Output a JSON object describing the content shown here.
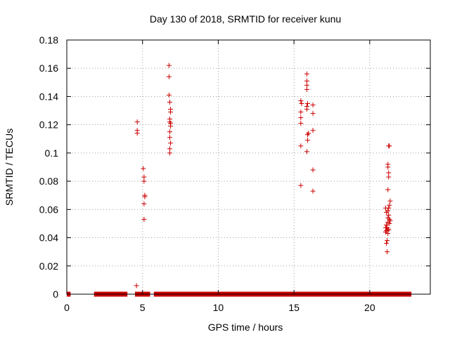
{
  "chart_data": {
    "type": "scatter",
    "title": "Day 130 of 2018, SRMTID for receiver kunu",
    "xlabel": "GPS time / hours",
    "ylabel": "SRMTID / TECUs",
    "xlim": [
      0,
      24
    ],
    "ylim": [
      0,
      0.18
    ],
    "grid": true,
    "marker": "+",
    "color": "#cc0000",
    "xticks": [
      0,
      5,
      10,
      15,
      20
    ],
    "xtick_labels": [
      "0",
      "5",
      "10",
      "15",
      "20"
    ],
    "yticks": [
      0,
      0.02,
      0.04,
      0.06,
      0.08,
      0.1,
      0.12,
      0.14,
      0.16,
      0.18
    ],
    "ytick_labels": [
      "0",
      "0.02",
      "0.04",
      "0.06",
      "0.08",
      "0.1",
      "0.12",
      "0.14",
      "0.16",
      "0.18"
    ],
    "zero_band": {
      "y": 0,
      "x_segments": [
        [
          0.0,
          0.25
        ],
        [
          1.8,
          4.0
        ],
        [
          4.5,
          5.5
        ],
        [
          5.75,
          22.75
        ]
      ]
    },
    "series": [
      {
        "name": "SRMTID",
        "points": [
          [
            4.6,
            0.006
          ],
          [
            4.65,
            0.122
          ],
          [
            4.65,
            0.116
          ],
          [
            4.65,
            0.114
          ],
          [
            5.05,
            0.089
          ],
          [
            5.1,
            0.083
          ],
          [
            5.1,
            0.08
          ],
          [
            5.15,
            0.07
          ],
          [
            5.15,
            0.069
          ],
          [
            5.1,
            0.064
          ],
          [
            5.1,
            0.053
          ],
          [
            6.75,
            0.162
          ],
          [
            6.75,
            0.154
          ],
          [
            6.75,
            0.141
          ],
          [
            6.8,
            0.136
          ],
          [
            6.85,
            0.131
          ],
          [
            6.85,
            0.129
          ],
          [
            6.8,
            0.124
          ],
          [
            6.8,
            0.122
          ],
          [
            6.85,
            0.121
          ],
          [
            6.85,
            0.119
          ],
          [
            6.8,
            0.115
          ],
          [
            6.8,
            0.111
          ],
          [
            6.85,
            0.107
          ],
          [
            6.8,
            0.103
          ],
          [
            6.8,
            0.1
          ],
          [
            15.45,
            0.137
          ],
          [
            15.5,
            0.135
          ],
          [
            15.45,
            0.129
          ],
          [
            15.45,
            0.125
          ],
          [
            15.45,
            0.121
          ],
          [
            15.45,
            0.105
          ],
          [
            15.45,
            0.077
          ],
          [
            15.85,
            0.156
          ],
          [
            15.85,
            0.151
          ],
          [
            15.85,
            0.148
          ],
          [
            15.85,
            0.145
          ],
          [
            15.9,
            0.135
          ],
          [
            15.85,
            0.133
          ],
          [
            15.85,
            0.131
          ],
          [
            15.95,
            0.114
          ],
          [
            15.9,
            0.113
          ],
          [
            15.9,
            0.109
          ],
          [
            15.85,
            0.101
          ],
          [
            16.25,
            0.134
          ],
          [
            16.25,
            0.128
          ],
          [
            16.25,
            0.116
          ],
          [
            16.25,
            0.088
          ],
          [
            16.25,
            0.073
          ],
          [
            21.3,
            0.105
          ],
          [
            21.25,
            0.105
          ],
          [
            21.2,
            0.092
          ],
          [
            21.2,
            0.09
          ],
          [
            21.25,
            0.086
          ],
          [
            21.25,
            0.083
          ],
          [
            21.2,
            0.074
          ],
          [
            21.35,
            0.066
          ],
          [
            21.3,
            0.063
          ],
          [
            21.25,
            0.061
          ],
          [
            21.05,
            0.061
          ],
          [
            21.2,
            0.059
          ],
          [
            21.1,
            0.058
          ],
          [
            21.25,
            0.056
          ],
          [
            21.2,
            0.054
          ],
          [
            21.3,
            0.053
          ],
          [
            21.35,
            0.052
          ],
          [
            21.2,
            0.051
          ],
          [
            21.3,
            0.05
          ],
          [
            21.1,
            0.049
          ],
          [
            21.05,
            0.047
          ],
          [
            21.15,
            0.047
          ],
          [
            21.25,
            0.046
          ],
          [
            21.1,
            0.045
          ],
          [
            21.2,
            0.045
          ],
          [
            21.05,
            0.044
          ],
          [
            21.2,
            0.043
          ],
          [
            21.15,
            0.038
          ],
          [
            21.1,
            0.036
          ],
          [
            21.15,
            0.03
          ]
        ]
      }
    ]
  }
}
